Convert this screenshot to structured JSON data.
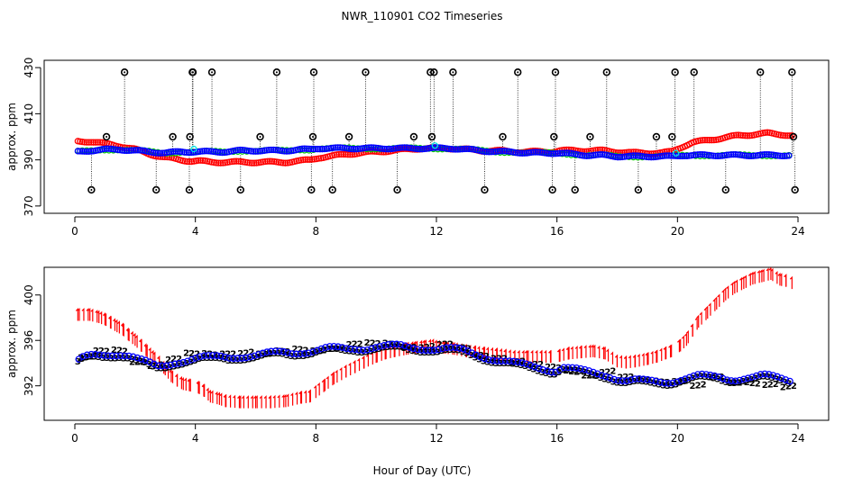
{
  "figure_title": "NWR_110901  CO2 Timeseries",
  "x_axis_label": "Hour of Day (UTC)",
  "colors": {
    "red": "#ff0000",
    "blue": "#0000ff",
    "green": "#00cc00",
    "cyan": "#00e5e5",
    "black": "#000000"
  },
  "chart_data": [
    {
      "type": "scatter",
      "title": "",
      "xlabel": "",
      "ylabel": "approx. ppm",
      "xlim": [
        0,
        24
      ],
      "ylim": [
        368,
        432
      ],
      "xticks": [
        "0",
        "4",
        "8",
        "12",
        "16",
        "20",
        "24"
      ],
      "yticks": [
        "370",
        "390",
        "410",
        "430"
      ],
      "series": [
        {
          "name": "red",
          "x": [
            0.1,
            0.5,
            1.0,
            1.5,
            2.0,
            2.5,
            3.0,
            3.5,
            3.85,
            4.1,
            4.5,
            5.0,
            5.5,
            6.0,
            6.5,
            7.0,
            7.5,
            7.8,
            8.1,
            8.5,
            9.0,
            9.5,
            10.0,
            10.5,
            11.0,
            11.5,
            11.9,
            12.1,
            12.5,
            13.0,
            13.5,
            14.0,
            14.5,
            15.0,
            15.5,
            15.8,
            16.1,
            16.5,
            17.0,
            17.5,
            18.0,
            18.5,
            19.0,
            19.5,
            19.8,
            20.2,
            20.5,
            21.0,
            21.5,
            22.0,
            22.5,
            23.0,
            23.5,
            23.8
          ],
          "y": [
            398.0,
            398.0,
            397.0,
            396.0,
            394.5,
            392.5,
            391.0,
            390.0,
            389.5,
            389.5,
            389.0,
            389.0,
            389.0,
            389.0,
            389.0,
            389.0,
            389.5,
            390.0,
            391.0,
            391.5,
            392.5,
            393.0,
            393.5,
            394.0,
            394.5,
            395.0,
            395.0,
            395.0,
            395.0,
            394.5,
            394.0,
            394.0,
            393.5,
            393.5,
            393.5,
            393.5,
            394.0,
            394.0,
            394.0,
            394.0,
            393.5,
            393.0,
            393.0,
            393.0,
            393.5,
            396.0,
            397.5,
            398.5,
            399.5,
            400.5,
            401.0,
            401.5,
            401.0,
            400.5
          ]
        },
        {
          "name": "blue",
          "x": [
            0.1,
            0.5,
            1.0,
            1.5,
            2.0,
            2.5,
            3.0,
            3.5,
            4.0,
            4.5,
            5.0,
            5.5,
            6.0,
            6.5,
            7.0,
            7.5,
            7.8,
            8.1,
            8.5,
            9.0,
            9.5,
            10.0,
            10.5,
            11.0,
            11.5,
            11.9,
            12.1,
            12.5,
            13.0,
            13.5,
            14.0,
            14.5,
            15.0,
            15.5,
            16.0,
            16.5,
            17.0,
            17.5,
            18.0,
            18.5,
            19.0,
            19.5,
            19.8,
            20.2,
            20.5,
            21.0,
            21.5,
            22.0,
            22.5,
            23.0,
            23.5,
            23.7
          ],
          "y": [
            393.5,
            394.0,
            394.5,
            394.5,
            394.0,
            393.5,
            393.0,
            393.5,
            393.5,
            393.5,
            393.5,
            394.0,
            394.0,
            394.0,
            394.0,
            394.5,
            394.5,
            395.0,
            395.0,
            395.0,
            395.0,
            395.0,
            395.0,
            395.0,
            395.0,
            395.0,
            395.0,
            395.0,
            394.5,
            394.0,
            393.5,
            393.5,
            393.0,
            393.0,
            393.0,
            392.5,
            392.0,
            392.0,
            391.5,
            391.5,
            391.5,
            391.5,
            391.5,
            392.0,
            392.0,
            392.0,
            392.0,
            392.0,
            392.0,
            392.0,
            392.0,
            392.0
          ]
        },
        {
          "name": "black spikes",
          "x": [
            0.55,
            1.05,
            1.65,
            2.7,
            3.25,
            3.8,
            3.82,
            3.9,
            3.92,
            4.55,
            5.5,
            6.15,
            6.7,
            7.85,
            7.9,
            7.93,
            8.55,
            9.1,
            9.65,
            10.7,
            11.25,
            11.8,
            11.85,
            11.92,
            12.55,
            13.6,
            14.2,
            14.7,
            15.85,
            15.9,
            15.95,
            16.6,
            17.1,
            17.65,
            18.7,
            19.3,
            19.8,
            19.82,
            19.92,
            20.55,
            21.6,
            22.75,
            23.8,
            23.85,
            23.9
          ],
          "y": [
            377,
            400,
            428,
            377,
            400,
            377,
            400,
            428,
            428,
            428,
            377,
            400,
            428,
            377,
            400,
            428,
            377,
            400,
            428,
            377,
            400,
            428,
            400,
            428,
            428,
            377,
            400,
            428,
            377,
            400,
            428,
            377,
            400,
            428,
            377,
            400,
            377,
            400,
            428,
            428,
            377,
            428,
            428,
            400,
            377
          ]
        }
      ]
    },
    {
      "type": "scatter",
      "title": "",
      "xlabel": "Hour of Day (UTC)",
      "ylabel": "approx. ppm",
      "xlim": [
        0,
        24
      ],
      "ylim": [
        389.2,
        402.2
      ],
      "xticks": [
        "0",
        "4",
        "8",
        "12",
        "16",
        "20",
        "24"
      ],
      "yticks": [
        "392",
        "396",
        "400"
      ],
      "series": [
        {
          "name": "red (symbol 1)",
          "x": [
            0.1,
            0.5,
            0.8,
            1.0,
            1.2,
            1.4,
            1.6,
            1.8,
            2.0,
            2.2,
            2.4,
            2.6,
            2.8,
            3.0,
            3.2,
            3.4,
            3.6,
            3.8,
            4.1,
            4.3,
            4.5,
            4.8,
            5.0,
            5.5,
            6.0,
            6.5,
            7.0,
            7.5,
            7.8,
            8.0,
            8.3,
            8.6,
            9.0,
            9.3,
            9.6,
            10.0,
            10.3,
            10.6,
            11.0,
            11.3,
            11.6,
            11.9,
            12.0,
            12.3,
            12.6,
            13.0,
            13.3,
            13.6,
            14.0,
            14.3,
            14.6,
            15.0,
            15.5,
            15.8,
            16.1,
            16.4,
            16.8,
            17.2,
            17.6,
            18.0,
            18.3,
            18.6,
            19.0,
            19.3,
            19.6,
            19.8,
            20.1,
            20.3,
            20.5,
            20.7,
            21.0,
            21.3,
            21.6,
            21.9,
            22.2,
            22.5,
            22.8,
            23.1,
            23.4,
            23.6,
            23.8
          ],
          "y": [
            398.2,
            398.2,
            398.0,
            397.8,
            397.5,
            397.2,
            396.9,
            396.4,
            396.0,
            395.5,
            395.0,
            394.5,
            394.0,
            393.4,
            392.8,
            392.4,
            392.1,
            392.0,
            391.8,
            391.5,
            391.0,
            390.8,
            390.6,
            390.5,
            390.5,
            390.5,
            390.6,
            390.9,
            391.0,
            391.4,
            392.0,
            392.6,
            393.2,
            393.6,
            394.0,
            394.5,
            394.8,
            395.0,
            395.2,
            395.3,
            395.4,
            395.5,
            395.4,
            395.3,
            395.2,
            395.0,
            394.9,
            394.8,
            394.7,
            394.6,
            394.5,
            394.5,
            394.5,
            394.5,
            394.6,
            394.8,
            394.9,
            395.0,
            394.8,
            394.1,
            394.0,
            394.1,
            394.3,
            394.5,
            394.8,
            395.0,
            395.5,
            396.0,
            396.8,
            397.6,
            398.4,
            399.2,
            400.0,
            400.6,
            401.0,
            401.4,
            401.6,
            401.8,
            401.3,
            401.2,
            401.0
          ]
        },
        {
          "name": "blue (symbol 3)",
          "x": [
            0.1,
            0.3,
            0.6,
            0.9,
            1.2,
            1.5,
            1.8,
            2.1,
            2.4,
            2.7,
            3.0,
            3.3,
            3.6,
            3.9,
            4.2,
            4.5,
            4.8,
            5.1,
            5.4,
            5.7,
            6.0,
            6.3,
            6.6,
            6.9,
            7.2,
            7.5,
            7.8,
            8.1,
            8.4,
            8.7,
            9.0,
            9.3,
            9.6,
            9.9,
            10.2,
            10.5,
            10.8,
            11.1,
            11.4,
            11.7,
            12.0,
            12.3,
            12.6,
            12.9,
            13.2,
            13.5,
            13.8,
            14.1,
            14.4,
            14.7,
            15.0,
            15.3,
            15.6,
            15.9,
            16.2,
            16.5,
            16.8,
            17.1,
            17.4,
            17.7,
            18.0,
            18.3,
            18.6,
            18.9,
            19.2,
            19.5,
            19.8,
            20.1,
            20.4,
            20.7,
            21.0,
            21.3,
            21.6,
            21.9,
            22.2,
            22.5,
            22.8,
            23.1,
            23.4,
            23.7
          ],
          "y": [
            394.0,
            394.3,
            394.5,
            394.6,
            394.7,
            394.7,
            394.5,
            394.1,
            393.8,
            393.5,
            393.7,
            394.0,
            394.1,
            394.2,
            394.3,
            394.3,
            394.4,
            394.4,
            394.5,
            394.5,
            394.5,
            394.6,
            394.7,
            394.8,
            394.8,
            394.9,
            394.9,
            395.0,
            395.1,
            395.1,
            395.1,
            395.2,
            395.2,
            395.3,
            395.3,
            395.3,
            395.3,
            395.2,
            395.2,
            395.2,
            395.1,
            395.1,
            395.0,
            394.9,
            394.7,
            394.5,
            394.3,
            394.1,
            393.9,
            393.7,
            393.6,
            393.5,
            393.4,
            393.2,
            393.5,
            393.3,
            393.1,
            393.0,
            392.9,
            392.8,
            392.5,
            392.3,
            392.3,
            392.2,
            392.2,
            392.2,
            392.3,
            392.5,
            392.6,
            392.7,
            392.6,
            392.6,
            392.5,
            392.5,
            392.6,
            392.6,
            392.7,
            392.6,
            392.5,
            392.4
          ]
        },
        {
          "name": "green (symbol 2)",
          "x": [
            0.2,
            0.7,
            1.3,
            1.9,
            2.5,
            3.1,
            3.7,
            4.3,
            4.9,
            5.5,
            6.1,
            6.7,
            7.3,
            7.9,
            8.5,
            9.1,
            9.7,
            10.3,
            10.9,
            11.5,
            12.1,
            12.7,
            13.3,
            13.9,
            14.5,
            15.1,
            15.7,
            16.3,
            16.9,
            17.5,
            18.1,
            18.7,
            19.3,
            19.9,
            20.5,
            21.1,
            21.7,
            22.3,
            22.9,
            23.5
          ],
          "y": [
            394.5,
            395.0,
            395.2,
            394.3,
            393.9,
            394.3,
            394.8,
            394.9,
            395.0,
            395.0,
            394.8,
            395.0,
            395.3,
            395.3,
            395.4,
            395.6,
            395.7,
            395.8,
            395.6,
            395.5,
            395.6,
            395.3,
            394.8,
            394.6,
            394.2,
            393.8,
            393.6,
            393.4,
            393.1,
            393.3,
            392.7,
            392.5,
            392.5,
            392.6,
            392.1,
            392.7,
            392.3,
            392.4,
            392.3,
            392.0
          ]
        }
      ]
    }
  ]
}
